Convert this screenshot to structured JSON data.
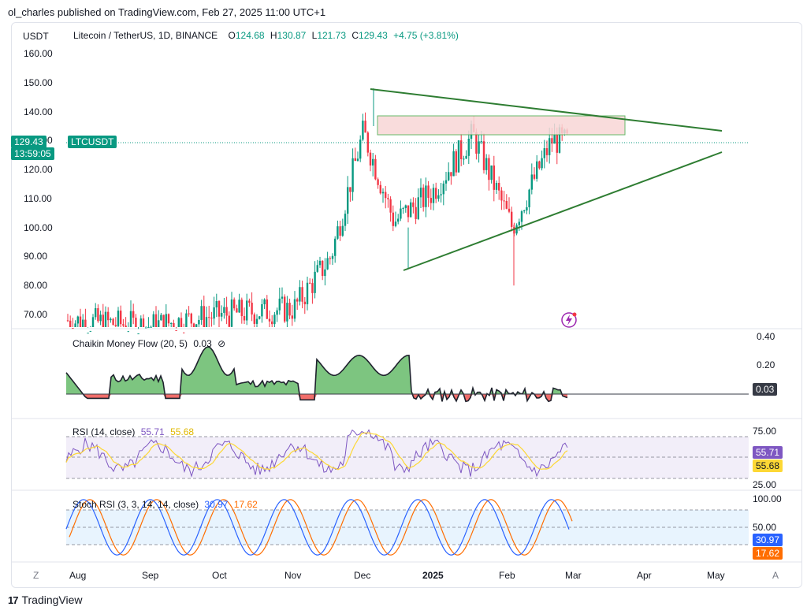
{
  "header": {
    "publisher_line": "ol_charles published on TradingView.com, Feb 27, 2025 11:00 UTC+1"
  },
  "chart": {
    "currency": "USDT",
    "symbol_line": "Litecoin / TetherUS, 1D, BINANCE",
    "ohlc": {
      "o_label": "O",
      "o": "124.68",
      "h_label": "H",
      "h": "130.87",
      "l_label": "L",
      "l": "121.73",
      "c_label": "C",
      "c": "129.43",
      "change": "+4.75 (+3.81%)"
    },
    "last_price_tag": "129.43",
    "countdown_tag": "13:59:05",
    "symbol_tag": "LTCUSDT"
  },
  "indicators": {
    "cmf": {
      "title": "Chaikin Money Flow (20, 5)",
      "value": "0.03",
      "ticks": [
        "0.40",
        "0.20",
        "0.03"
      ]
    },
    "rsi": {
      "title": "RSI (14, close)",
      "value1": "55.71",
      "value2": "55.68",
      "ticks": [
        "75.00",
        "25.00"
      ]
    },
    "stoch": {
      "title": "Stoch RSI (3, 3, 14, 14, close)",
      "value1": "30.97",
      "value2": "17.62",
      "ticks": [
        "100.00",
        "50.00"
      ]
    }
  },
  "time_axis": {
    "left_btn": "Z",
    "right_btn": "A",
    "labels": [
      "Aug",
      "Sep",
      "Oct",
      "Nov",
      "Dec",
      "2025",
      "Feb",
      "Mar",
      "Apr",
      "May"
    ]
  },
  "footer": {
    "logo_text": "TradingView",
    "logo_mark": "17"
  },
  "colors": {
    "up": "#089981",
    "down": "#f23645",
    "trendline": "#2e7d32",
    "resistance_fill": "#f8d7d7",
    "cmf_pos": "#66bb6a",
    "cmf_neg": "#ef5350",
    "rsi_line": "#7e57c2",
    "rsi_ma": "#fdd835",
    "stoch_k": "#2962ff",
    "stoch_d": "#ff6d00"
  },
  "chart_data": {
    "type": "candlestick",
    "title": "Litecoin / TetherUS, 1D, BINANCE",
    "y_axis": {
      "ticks": [
        70,
        80,
        90,
        100,
        110,
        120,
        130,
        140,
        150,
        160
      ],
      "range": [
        64,
        164
      ]
    },
    "x_axis": {
      "labels": [
        "Aug",
        "Sep",
        "Oct",
        "Nov",
        "Dec",
        "2025",
        "Feb",
        "Mar",
        "Apr",
        "May"
      ]
    },
    "last": {
      "open": 124.68,
      "high": 130.87,
      "low": 121.73,
      "close": 129.43,
      "change": 4.75,
      "change_pct": 3.81
    },
    "approx_path": [
      {
        "month": "Aug",
        "close": 68
      },
      {
        "month": "Sep",
        "close": 66
      },
      {
        "month": "Oct",
        "close": 70
      },
      {
        "month": "Nov",
        "close": 72
      },
      {
        "month": "Nov-mid",
        "close": 90
      },
      {
        "month": "Dec",
        "close": 133
      },
      {
        "month": "Dec-mid",
        "close": 102
      },
      {
        "month": "2025",
        "close": 112
      },
      {
        "month": "Jan-mid",
        "close": 132
      },
      {
        "month": "Feb",
        "close": 100
      },
      {
        "month": "Feb-mid",
        "close": 130
      },
      {
        "month": "Feb-end",
        "close": 129.43
      }
    ],
    "annotations": {
      "resistance_zone": [
        132,
        139
      ],
      "upper_trendline": {
        "from": 148,
        "to": 133
      },
      "lower_trendline": {
        "from": 85,
        "to": 125
      }
    },
    "indicators": {
      "cmf": {
        "last": 0.03,
        "ticks": [
          0.4,
          0.2
        ]
      },
      "rsi": {
        "rsi": 55.71,
        "ma": 55.68,
        "bands": [
          30,
          70
        ]
      },
      "stoch_rsi": {
        "k": 30.97,
        "d": 17.62,
        "bands": [
          20,
          80
        ]
      }
    }
  }
}
